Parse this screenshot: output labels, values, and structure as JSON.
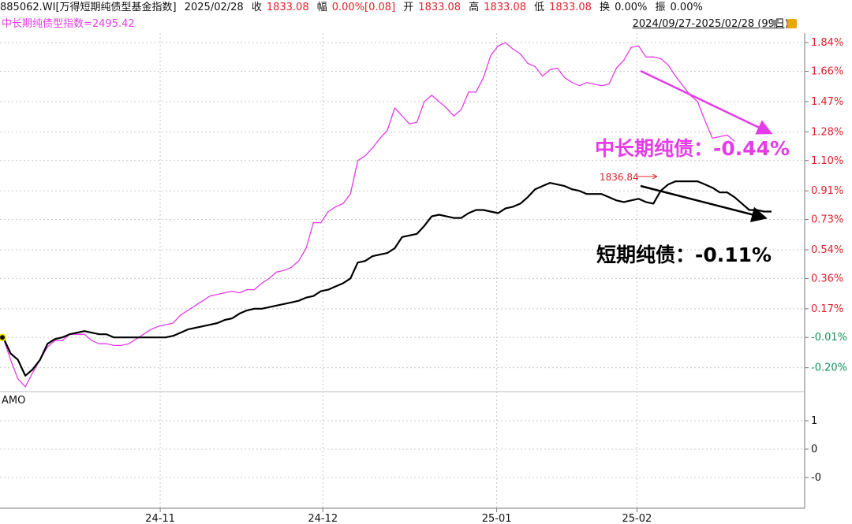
{
  "header": {
    "code_name": "885062.WI[万得短期纯债型基金指数]",
    "date": "2025/02/28",
    "close_label": "收",
    "close_value": "1833.08",
    "change_label": "幅",
    "change_value": "0.00%[0.08]",
    "open_label": "开",
    "open_value": "1833.08",
    "high_label": "高",
    "high_value": "1833.08",
    "low_label": "低",
    "low_value": "1833.08",
    "turnover_label": "换",
    "turnover_value": "0.00%",
    "amp_label": "振",
    "amp_value": "0.00%"
  },
  "subheader": {
    "overlay_label": "中长期纯债型指数=2495.42",
    "range": "2024/09/27-2025/02/28 (99日)"
  },
  "colors": {
    "short": "#000000",
    "mid_long": "#e43ce6",
    "up": "#e0202a",
    "down": "#11905a"
  },
  "chart_data": {
    "type": "line",
    "x_ticks": [
      "24-11",
      "24-12",
      "25-01",
      "25-02"
    ],
    "y_ticks": [
      "1.84%",
      "1.66%",
      "1.47%",
      "1.28%",
      "1.10%",
      "0.91%",
      "0.73%",
      "0.54%",
      "0.36%",
      "0.17%",
      "-0.01%",
      "-0.20%"
    ],
    "ylim": [
      -0.35,
      1.9
    ],
    "series": [
      {
        "name": "短期纯债",
        "values": [
          -0.01,
          -0.11,
          -0.15,
          -0.25,
          -0.21,
          -0.15,
          -0.05,
          -0.02,
          -0.01,
          0.01,
          0.02,
          0.03,
          0.02,
          0.01,
          0.01,
          -0.01,
          -0.01,
          -0.01,
          -0.01,
          -0.01,
          -0.01,
          -0.01,
          -0.01,
          0.0,
          0.02,
          0.04,
          0.05,
          0.06,
          0.07,
          0.08,
          0.1,
          0.11,
          0.14,
          0.16,
          0.17,
          0.17,
          0.18,
          0.19,
          0.2,
          0.21,
          0.22,
          0.24,
          0.25,
          0.28,
          0.29,
          0.31,
          0.33,
          0.36,
          0.46,
          0.47,
          0.5,
          0.51,
          0.52,
          0.55,
          0.62,
          0.63,
          0.64,
          0.69,
          0.75,
          0.76,
          0.75,
          0.74,
          0.74,
          0.77,
          0.79,
          0.79,
          0.78,
          0.77,
          0.8,
          0.81,
          0.83,
          0.87,
          0.92,
          0.94,
          0.96,
          0.95,
          0.94,
          0.92,
          0.91,
          0.89,
          0.89,
          0.89,
          0.87,
          0.85,
          0.84,
          0.85,
          0.86,
          0.84,
          0.83,
          0.91,
          0.95,
          0.97,
          0.97,
          0.97,
          0.97,
          0.95,
          0.93,
          0.9,
          0.9,
          0.87,
          0.83,
          0.79,
          0.79,
          0.78,
          0.78
        ]
      },
      {
        "name": "中长期纯债",
        "values": [
          -0.01,
          -0.15,
          -0.27,
          -0.32,
          -0.23,
          -0.15,
          -0.07,
          -0.03,
          -0.03,
          0.01,
          0.01,
          0.01,
          -0.03,
          -0.05,
          -0.05,
          -0.06,
          -0.06,
          -0.05,
          -0.02,
          0.01,
          0.04,
          0.06,
          0.07,
          0.08,
          0.13,
          0.16,
          0.19,
          0.22,
          0.25,
          0.26,
          0.27,
          0.28,
          0.27,
          0.29,
          0.29,
          0.33,
          0.36,
          0.4,
          0.41,
          0.43,
          0.47,
          0.55,
          0.71,
          0.71,
          0.78,
          0.81,
          0.83,
          0.89,
          1.1,
          1.13,
          1.18,
          1.24,
          1.29,
          1.43,
          1.38,
          1.33,
          1.34,
          1.47,
          1.51,
          1.47,
          1.43,
          1.38,
          1.42,
          1.53,
          1.53,
          1.62,
          1.76,
          1.82,
          1.84,
          1.8,
          1.77,
          1.71,
          1.69,
          1.63,
          1.67,
          1.68,
          1.62,
          1.59,
          1.57,
          1.59,
          1.58,
          1.57,
          1.58,
          1.68,
          1.73,
          1.81,
          1.82,
          1.75,
          1.75,
          1.74,
          1.7,
          1.63,
          1.57,
          1.51,
          1.47,
          1.35,
          1.24,
          1.25,
          1.26,
          1.22
        ]
      }
    ],
    "annotations": {
      "mid_long": "中长期纯债：-0.44%",
      "short": "短期纯债：-0.11%",
      "peak_label": "1836.84"
    },
    "sub_panel": {
      "title": "AMO",
      "y_ticks": [
        "1",
        "0",
        "-0"
      ]
    }
  }
}
